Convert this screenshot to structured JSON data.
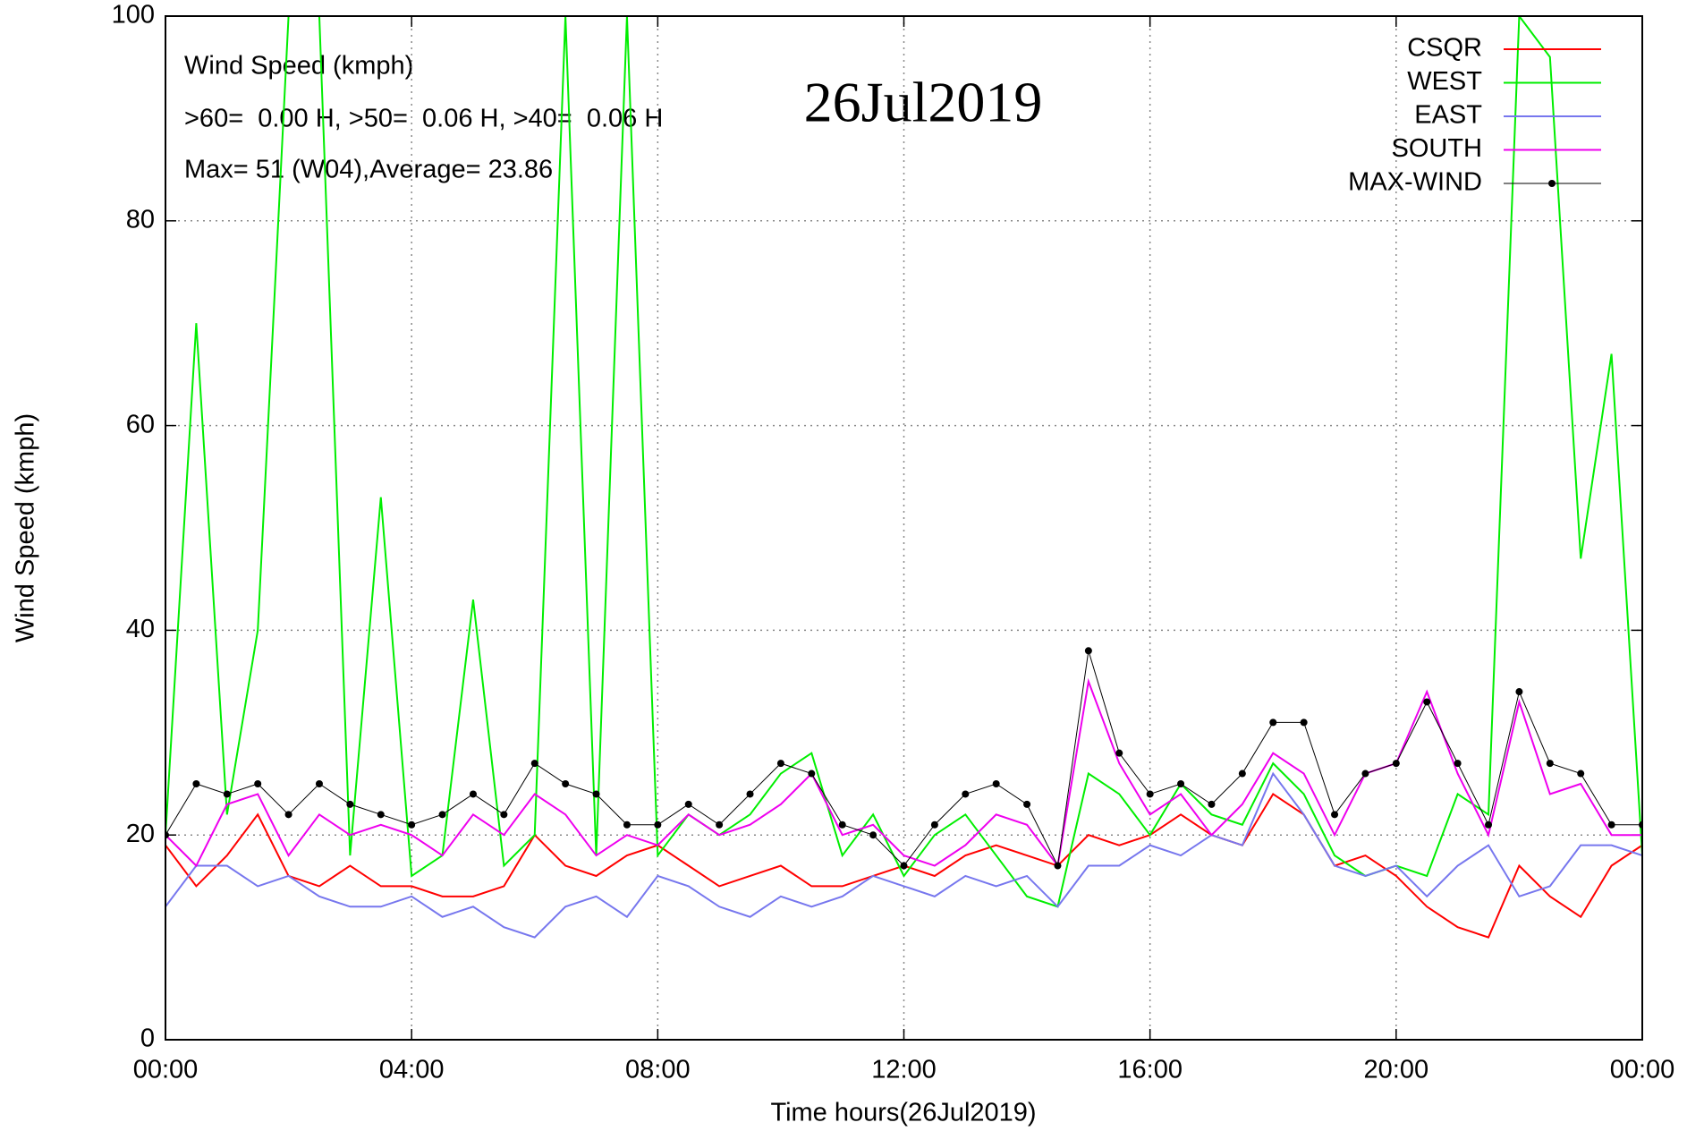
{
  "chart_data": {
    "type": "line",
    "title": "26Jul2019",
    "annotations": [
      "Wind Speed (kmph)",
      ">60=  0.00 H, >50=  0.06 H, >40=  0.06 H",
      "Max= 51 (W04),Average= 23.86"
    ],
    "x_label": "Time hours(26Jul2019)",
    "y_label": "Wind Speed (kmph)",
    "x": [
      0,
      0.5,
      1,
      1.5,
      2,
      2.5,
      3,
      3.5,
      4,
      4.5,
      5,
      5.5,
      6,
      6.5,
      7,
      7.5,
      8,
      8.5,
      9,
      9.5,
      10,
      10.5,
      11,
      11.5,
      12,
      12.5,
      13,
      13.5,
      14,
      14.5,
      15,
      15.5,
      16,
      16.5,
      17,
      17.5,
      18,
      18.5,
      19,
      19.5,
      20,
      20.5,
      21,
      21.5,
      22,
      22.5,
      23,
      23.5,
      24
    ],
    "series": [
      {
        "name": "CSQR",
        "color": "#ff0000",
        "values": [
          19,
          15,
          18,
          22,
          16,
          15,
          17,
          15,
          15,
          14,
          14,
          15,
          20,
          17,
          16,
          18,
          19,
          17,
          15,
          16,
          17,
          15,
          15,
          16,
          17,
          16,
          18,
          19,
          18,
          17,
          20,
          19,
          20,
          22,
          20,
          19,
          24,
          22,
          17,
          18,
          16,
          13,
          11,
          10,
          17,
          14,
          12,
          17,
          19
        ]
      },
      {
        "name": "WEST",
        "color": "#00ee00",
        "values": [
          20,
          70,
          22,
          40,
          100,
          100,
          18,
          53,
          16,
          18,
          43,
          17,
          20,
          100,
          18,
          100,
          18,
          22,
          20,
          22,
          26,
          28,
          18,
          22,
          16,
          20,
          22,
          18,
          14,
          13,
          26,
          24,
          20,
          25,
          22,
          21,
          27,
          24,
          18,
          16,
          17,
          16,
          24,
          22,
          100,
          96,
          47,
          67,
          18
        ]
      },
      {
        "name": "EAST",
        "color": "#7777ee",
        "values": [
          13,
          17,
          17,
          15,
          16,
          14,
          13,
          13,
          14,
          12,
          13,
          11,
          10,
          13,
          14,
          12,
          16,
          15,
          13,
          12,
          14,
          13,
          14,
          16,
          15,
          14,
          16,
          15,
          16,
          13,
          17,
          17,
          19,
          18,
          20,
          19,
          26,
          22,
          17,
          16,
          17,
          14,
          17,
          19,
          14,
          15,
          19,
          19,
          18
        ]
      },
      {
        "name": "SOUTH",
        "color": "#ee00ee",
        "values": [
          20,
          17,
          23,
          24,
          18,
          22,
          20,
          21,
          20,
          18,
          22,
          20,
          24,
          22,
          18,
          20,
          19,
          22,
          20,
          21,
          23,
          26,
          20,
          21,
          18,
          17,
          19,
          22,
          21,
          17,
          35,
          27,
          22,
          24,
          20,
          23,
          28,
          26,
          20,
          26,
          27,
          34,
          26,
          20,
          33,
          24,
          25,
          20,
          20
        ]
      },
      {
        "name": "MAX-WIND",
        "color": "#000000",
        "markers": true,
        "values": [
          20,
          25,
          24,
          25,
          22,
          25,
          23,
          22,
          21,
          22,
          24,
          22,
          27,
          25,
          24,
          21,
          21,
          23,
          21,
          24,
          27,
          26,
          21,
          20,
          17,
          21,
          24,
          25,
          23,
          17,
          38,
          28,
          24,
          25,
          23,
          26,
          31,
          31,
          22,
          26,
          27,
          33,
          27,
          21,
          34,
          27,
          26,
          21,
          21
        ]
      }
    ],
    "xlim": [
      0,
      24
    ],
    "xticks": [
      {
        "value": 0,
        "label": "00:00"
      },
      {
        "value": 4,
        "label": "04:00"
      },
      {
        "value": 8,
        "label": "08:00"
      },
      {
        "value": 12,
        "label": "12:00"
      },
      {
        "value": 16,
        "label": "16:00"
      },
      {
        "value": 20,
        "label": "20:00"
      },
      {
        "value": 24,
        "label": "00:00"
      }
    ],
    "ylim": [
      0,
      100
    ],
    "yticks": [
      0,
      20,
      40,
      60,
      80,
      100
    ],
    "grid": true,
    "legend": "top-right"
  }
}
